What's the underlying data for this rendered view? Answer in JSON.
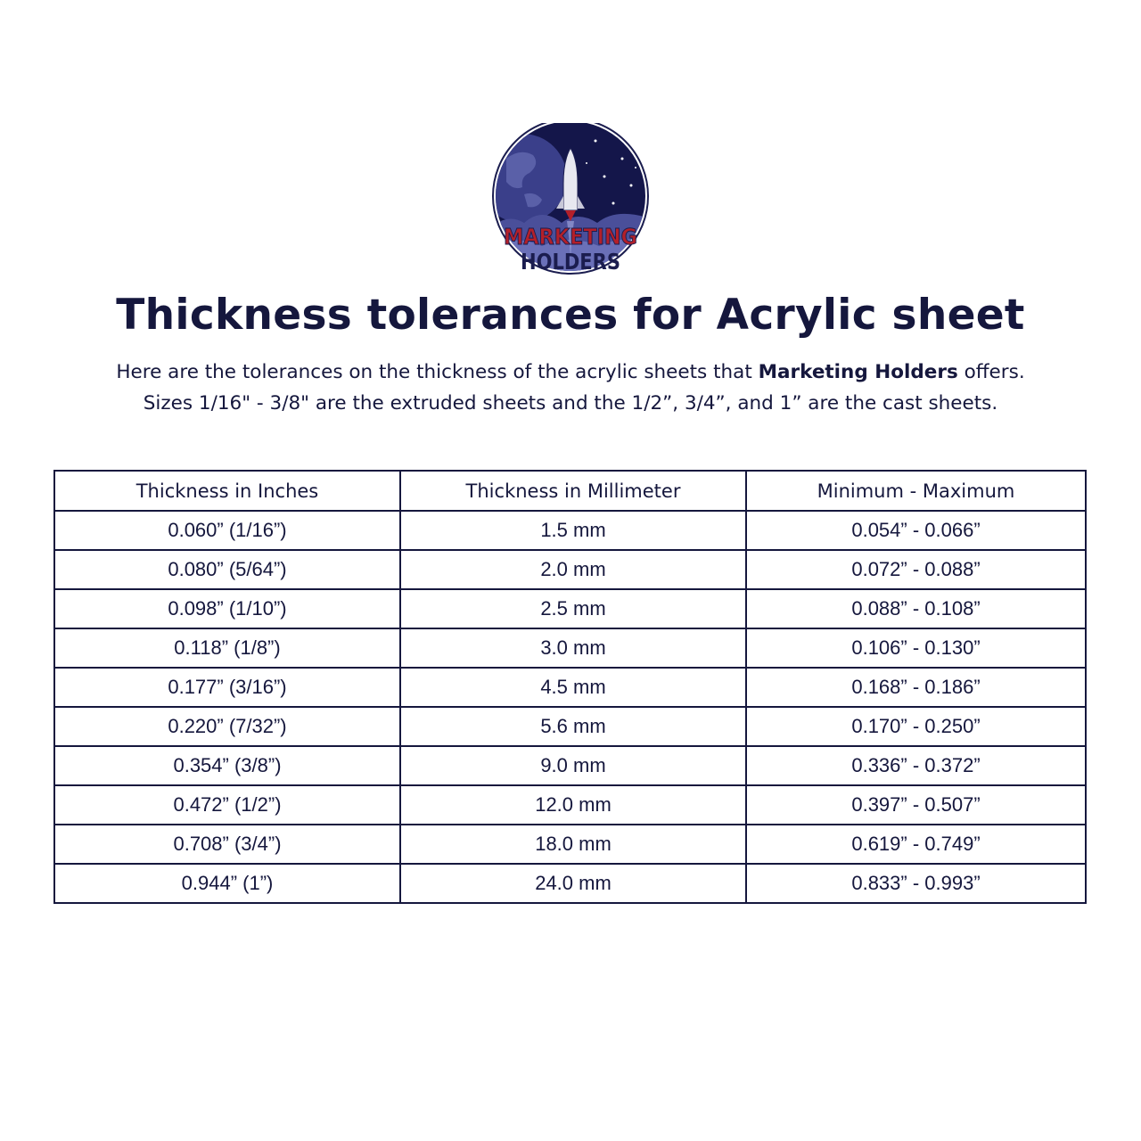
{
  "logo": {
    "line1": "MARKETING",
    "line2": "HOLDERS",
    "colors": {
      "navy": "#1b1d4f",
      "red": "#b3202a"
    }
  },
  "title": "Thickness tolerances for Acrylic sheet",
  "intro": {
    "line1_before": "Here are the tolerances on the thickness of the acrylic sheets that ",
    "line1_bold": "Marketing Holders",
    "line1_after": " offers.",
    "line2": "Sizes 1/16\" - 3/8\" are the extruded sheets and the 1/2”, 3/4”, and 1” are the cast sheets."
  },
  "table": {
    "headers": [
      "Thickness in Inches",
      "Thickness in Millimeter",
      "Minimum - Maximum"
    ],
    "rows": [
      [
        "0.060” (1/16”)",
        "1.5 mm",
        "0.054” - 0.066”"
      ],
      [
        "0.080” (5/64”)",
        "2.0 mm",
        "0.072” - 0.088”"
      ],
      [
        "0.098” (1/10”)",
        "2.5 mm",
        "0.088” - 0.108”"
      ],
      [
        "0.118” (1/8”)",
        "3.0 mm",
        "0.106” - 0.130”"
      ],
      [
        "0.177” (3/16”)",
        "4.5 mm",
        "0.168” - 0.186”"
      ],
      [
        "0.220” (7/32”)",
        "5.6 mm",
        "0.170” - 0.250”"
      ],
      [
        "0.354” (3/8”)",
        "9.0 mm",
        "0.336” - 0.372”"
      ],
      [
        "0.472” (1/2”)",
        "12.0 mm",
        "0.397” - 0.507”"
      ],
      [
        "0.708” (3/4”)",
        "18.0 mm",
        "0.619” - 0.749”"
      ],
      [
        "0.944” (1”)",
        "24.0 mm",
        "0.833” - 0.993”"
      ]
    ]
  }
}
